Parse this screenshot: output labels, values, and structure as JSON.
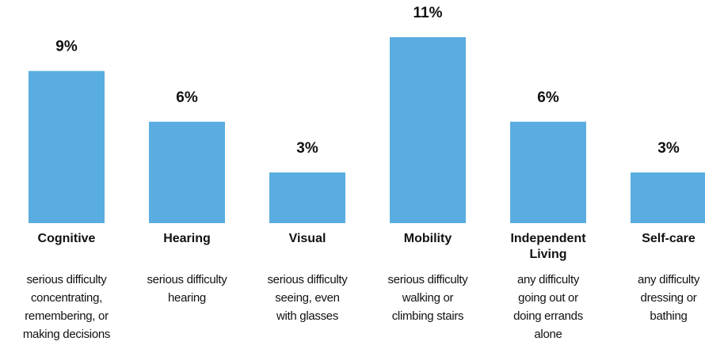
{
  "chart_data": {
    "type": "bar",
    "color": "#5aade0",
    "categories": [
      "Cognitive",
      "Hearing",
      "Visual",
      "Mobility",
      "Independent Living",
      "Self-care"
    ],
    "values": [
      9,
      6,
      3,
      11,
      6,
      3
    ],
    "value_labels": [
      "9%",
      "6%",
      "3%",
      "11%",
      "6%",
      "3%"
    ],
    "descriptions": [
      [
        "serious difficulty",
        "concentrating,",
        "remembering, or",
        "making decisions"
      ],
      [
        "serious difficulty",
        "hearing"
      ],
      [
        "serious difficulty",
        "seeing, even",
        "with glasses"
      ],
      [
        "serious difficulty",
        "walking or",
        "climbing stairs"
      ],
      [
        "any difficulty",
        "going out or",
        "doing errands",
        "alone"
      ],
      [
        "any difficulty",
        "dressing or",
        "bathing"
      ]
    ]
  }
}
